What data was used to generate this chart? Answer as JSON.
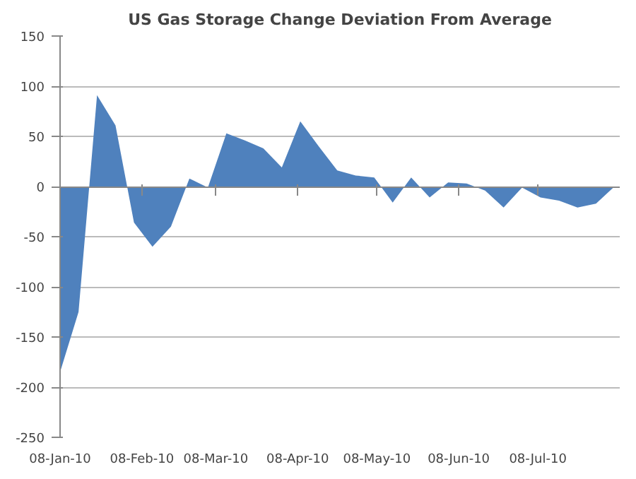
{
  "chart_data": {
    "type": "area",
    "title": "US Gas Storage Change Deviation From Average",
    "x": [
      "2010-01-08",
      "2010-01-15",
      "2010-01-22",
      "2010-01-29",
      "2010-02-05",
      "2010-02-12",
      "2010-02-19",
      "2010-02-26",
      "2010-03-05",
      "2010-03-12",
      "2010-03-19",
      "2010-03-26",
      "2010-04-02",
      "2010-04-09",
      "2010-04-16",
      "2010-04-23",
      "2010-04-30",
      "2010-05-07",
      "2010-05-14",
      "2010-05-21",
      "2010-05-28",
      "2010-06-04",
      "2010-06-11",
      "2010-06-18",
      "2010-06-25",
      "2010-07-02",
      "2010-07-09",
      "2010-07-16",
      "2010-07-23",
      "2010-07-30",
      "2010-08-06"
    ],
    "series": [
      {
        "color": "#4f81bd",
        "values": [
          -185,
          -125,
          91,
          61,
          -36,
          -60,
          -40,
          8,
          -1,
          53,
          46,
          38,
          19,
          65,
          40,
          16,
          11,
          9,
          -16,
          9,
          -11,
          4,
          3,
          -4,
          -21,
          -1,
          -11,
          -14,
          -21,
          -17,
          0
        ]
      }
    ],
    "xlim": [
      "2010-01-08",
      "2010-08-08"
    ],
    "xticks": [
      {
        "value": "2010-01-08",
        "label": "08-Jan-10"
      },
      {
        "value": "2010-02-08",
        "label": "08-Feb-10"
      },
      {
        "value": "2010-03-08",
        "label": "08-Mar-10"
      },
      {
        "value": "2010-04-08",
        "label": "08-Apr-10"
      },
      {
        "value": "2010-05-08",
        "label": "08-May-10"
      },
      {
        "value": "2010-06-08",
        "label": "08-Jun-10"
      },
      {
        "value": "2010-07-08",
        "label": "08-Jul-10"
      }
    ],
    "ylim": [
      -250,
      150
    ],
    "yticks": [
      -250,
      -200,
      -150,
      -100,
      -50,
      0,
      50,
      100,
      150
    ],
    "grid": "y"
  }
}
